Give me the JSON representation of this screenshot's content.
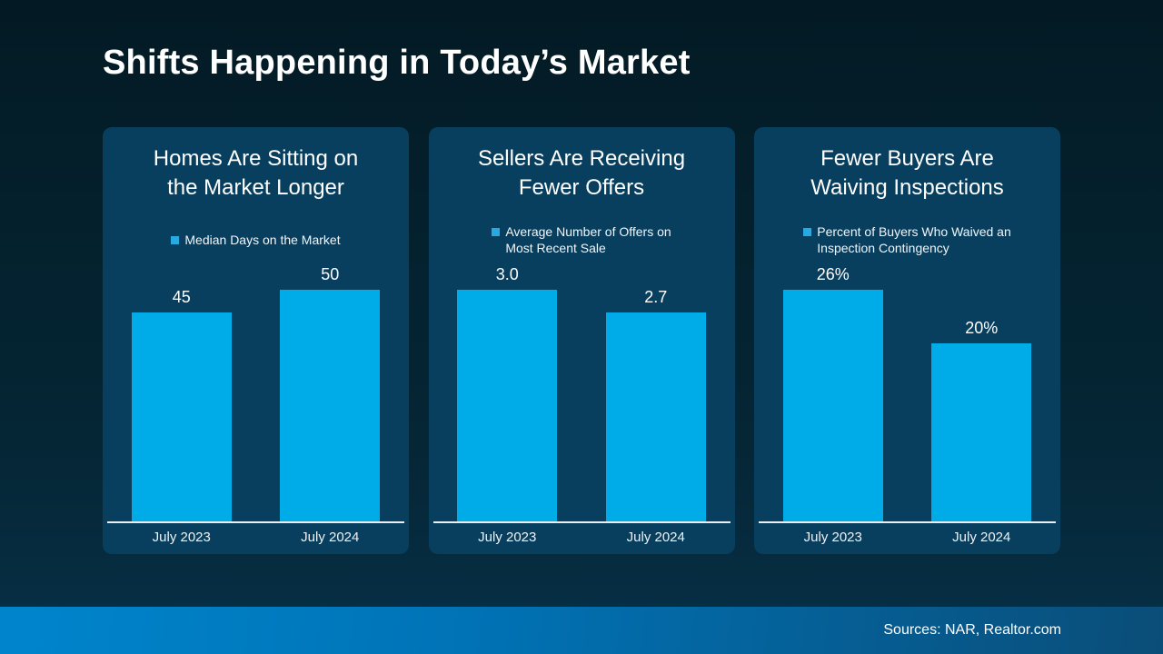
{
  "slide": {
    "title": "Shifts Happening in Today’s Market",
    "footer": {
      "sources": "Sources: NAR, Realtor.com"
    }
  },
  "colors": {
    "background_top": "#031a24",
    "background_bottom": "#073048",
    "card_background": "#083e5e",
    "bar_fill": "#00ace8",
    "legend_marker": "#29a9e2",
    "axis_line": "#e8eef2",
    "footer_gradient_left": "#0085cd",
    "footer_gradient_right": "#0a4d78",
    "text": "#ffffff"
  },
  "chart_data": [
    {
      "type": "bar",
      "title": "Homes Are Sitting on\nthe Market Longer",
      "legend": "Median Days on the Market",
      "categories": [
        "July 2023",
        "July 2024"
      ],
      "values": [
        45,
        50
      ],
      "value_labels": [
        "45",
        "50"
      ],
      "ylim": [
        0,
        50
      ],
      "grid": false,
      "legend_position": "top-center"
    },
    {
      "type": "bar",
      "title": "Sellers Are Receiving\nFewer Offers",
      "legend": "Average Number of Offers on\nMost Recent Sale",
      "categories": [
        "July 2023",
        "July 2024"
      ],
      "values": [
        3.0,
        2.7
      ],
      "value_labels": [
        "3.0",
        "2.7"
      ],
      "ylim": [
        0,
        3
      ],
      "grid": false,
      "legend_position": "top-center"
    },
    {
      "type": "bar",
      "title": "Fewer Buyers Are\nWaiving Inspections",
      "legend": "Percent of Buyers Who Waived an\nInspection Contingency",
      "categories": [
        "July 2023",
        "July 2024"
      ],
      "values": [
        26,
        20
      ],
      "value_labels": [
        "26%",
        "20%"
      ],
      "ylim": [
        0,
        26
      ],
      "grid": false,
      "legend_position": "top-center"
    }
  ]
}
